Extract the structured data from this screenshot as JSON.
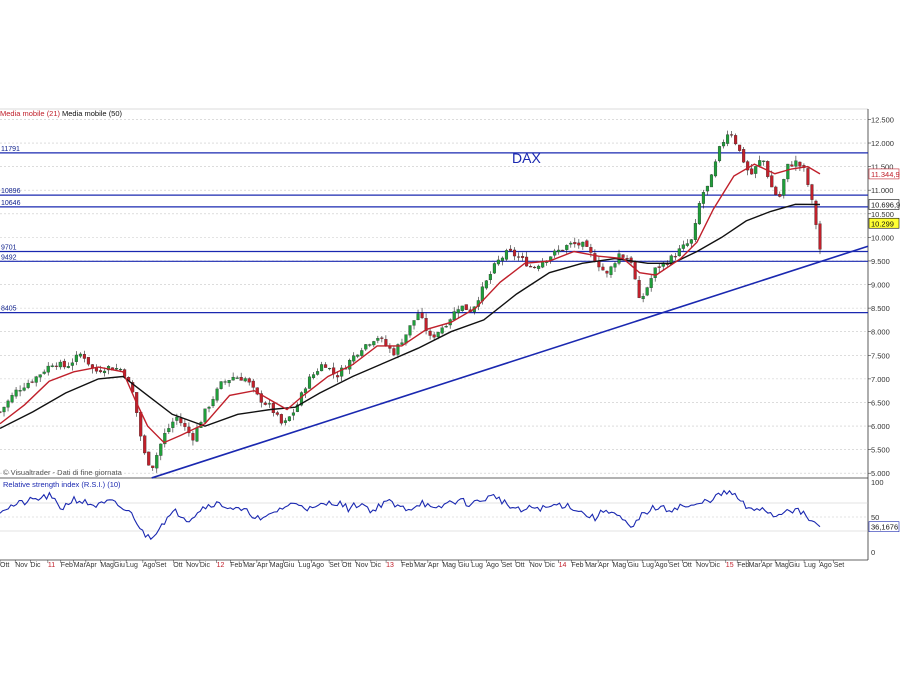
{
  "chart_data": [
    {
      "type": "candlestick",
      "title": "DAX",
      "legend": [
        {
          "label": "Media mobile (21)",
          "color": "#c0202b"
        },
        {
          "label": "Media mobile (50)",
          "color": "#111111"
        }
      ],
      "watermark": "© Visualtrader - Dati di fine giornata",
      "y_ticks": [
        "12.500",
        "12.000",
        "11.500",
        "11.000",
        "10.500",
        "10.000",
        "9.500",
        "9.000",
        "8.500",
        "8.000",
        "7.500",
        "7.000",
        "6.500",
        "6.000",
        "5.500",
        "5.000"
      ],
      "y_tick_values": [
        12500,
        12000,
        11500,
        11000,
        10500,
        10000,
        9500,
        9000,
        8500,
        8000,
        7500,
        7000,
        6500,
        6000,
        5500,
        5000
      ],
      "ylim": [
        4920,
        12700
      ],
      "levels": [
        {
          "label": "11791",
          "value": 11791
        },
        {
          "label": "10896",
          "value": 10896
        },
        {
          "label": "10646",
          "value": 10646
        },
        {
          "label": "9701",
          "value": 9701
        },
        {
          "label": "9492",
          "value": 9492
        },
        {
          "label": "8405",
          "value": 8405
        }
      ],
      "trendline": {
        "from": {
          "x": 0.185,
          "y": 4900
        },
        "to": {
          "x": 1.0,
          "y": 9600
        }
      },
      "value_badges": [
        {
          "label": "11.344,9",
          "value": 11345,
          "color": "#c0202b"
        },
        {
          "label": "10.696,9",
          "value": 10697,
          "color": "#111111"
        },
        {
          "label": "10.299",
          "value": 10299,
          "color": "#111111",
          "fill": "#ffff33"
        }
      ],
      "anchors": [
        [
          0.0,
          6300
        ],
        [
          0.02,
          6750
        ],
        [
          0.045,
          7050
        ],
        [
          0.065,
          7350
        ],
        [
          0.08,
          7250
        ],
        [
          0.1,
          7550
        ],
        [
          0.115,
          7150
        ],
        [
          0.13,
          7250
        ],
        [
          0.15,
          7200
        ],
        [
          0.163,
          6650
        ],
        [
          0.175,
          5450
        ],
        [
          0.185,
          5100
        ],
        [
          0.2,
          5800
        ],
        [
          0.215,
          6200
        ],
        [
          0.235,
          5750
        ],
        [
          0.25,
          6300
        ],
        [
          0.27,
          6900
        ],
        [
          0.285,
          7050
        ],
        [
          0.3,
          7000
        ],
        [
          0.315,
          6600
        ],
        [
          0.33,
          6400
        ],
        [
          0.345,
          6000
        ],
        [
          0.36,
          6350
        ],
        [
          0.375,
          6950
        ],
        [
          0.395,
          7350
        ],
        [
          0.41,
          7050
        ],
        [
          0.425,
          7350
        ],
        [
          0.44,
          7650
        ],
        [
          0.46,
          7900
        ],
        [
          0.48,
          7550
        ],
        [
          0.495,
          7950
        ],
        [
          0.51,
          8400
        ],
        [
          0.525,
          7850
        ],
        [
          0.545,
          8200
        ],
        [
          0.56,
          8550
        ],
        [
          0.575,
          8450
        ],
        [
          0.59,
          8950
        ],
        [
          0.605,
          9450
        ],
        [
          0.62,
          9700
        ],
        [
          0.635,
          9550
        ],
        [
          0.65,
          9350
        ],
        [
          0.665,
          9550
        ],
        [
          0.68,
          9700
        ],
        [
          0.695,
          9850
        ],
        [
          0.71,
          9850
        ],
        [
          0.725,
          9550
        ],
        [
          0.74,
          9200
        ],
        [
          0.755,
          9650
        ],
        [
          0.77,
          9500
        ],
        [
          0.78,
          8600
        ],
        [
          0.8,
          9350
        ],
        [
          0.815,
          9500
        ],
        [
          0.83,
          9750
        ],
        [
          0.845,
          9950
        ],
        [
          0.855,
          10900
        ],
        [
          0.865,
          11100
        ],
        [
          0.878,
          11900
        ],
        [
          0.89,
          12300
        ],
        [
          0.9,
          11900
        ],
        [
          0.915,
          11300
        ],
        [
          0.93,
          11700
        ],
        [
          0.94,
          11100
        ],
        [
          0.95,
          10800
        ],
        [
          0.96,
          11500
        ],
        [
          0.97,
          11600
        ],
        [
          0.98,
          11450
        ],
        [
          0.988,
          10950
        ],
        [
          0.995,
          10300
        ],
        [
          1.0,
          9750
        ]
      ],
      "ma21": [
        [
          0.0,
          6050
        ],
        [
          0.03,
          6450
        ],
        [
          0.06,
          6950
        ],
        [
          0.09,
          7150
        ],
        [
          0.12,
          7250
        ],
        [
          0.15,
          7150
        ],
        [
          0.165,
          6550
        ],
        [
          0.18,
          6000
        ],
        [
          0.2,
          5650
        ],
        [
          0.22,
          5800
        ],
        [
          0.25,
          6050
        ],
        [
          0.28,
          6650
        ],
        [
          0.31,
          6750
        ],
        [
          0.33,
          6550
        ],
        [
          0.35,
          6350
        ],
        [
          0.37,
          6650
        ],
        [
          0.4,
          7050
        ],
        [
          0.43,
          7300
        ],
        [
          0.46,
          7700
        ],
        [
          0.49,
          7700
        ],
        [
          0.52,
          8050
        ],
        [
          0.55,
          8200
        ],
        [
          0.58,
          8500
        ],
        [
          0.61,
          9050
        ],
        [
          0.64,
          9450
        ],
        [
          0.67,
          9500
        ],
        [
          0.7,
          9700
        ],
        [
          0.73,
          9600
        ],
        [
          0.76,
          9550
        ],
        [
          0.78,
          9250
        ],
        [
          0.8,
          9200
        ],
        [
          0.83,
          9550
        ],
        [
          0.85,
          9900
        ],
        [
          0.87,
          10600
        ],
        [
          0.895,
          11300
        ],
        [
          0.92,
          11550
        ],
        [
          0.945,
          11350
        ],
        [
          0.965,
          11450
        ],
        [
          0.985,
          11500
        ],
        [
          1.0,
          11345
        ]
      ],
      "ma50": [
        [
          0.0,
          5950
        ],
        [
          0.04,
          6300
        ],
        [
          0.08,
          6700
        ],
        [
          0.12,
          7000
        ],
        [
          0.15,
          7050
        ],
        [
          0.18,
          6650
        ],
        [
          0.21,
          6250
        ],
        [
          0.25,
          6000
        ],
        [
          0.29,
          6250
        ],
        [
          0.33,
          6350
        ],
        [
          0.36,
          6400
        ],
        [
          0.39,
          6700
        ],
        [
          0.43,
          7050
        ],
        [
          0.47,
          7350
        ],
        [
          0.51,
          7650
        ],
        [
          0.55,
          8000
        ],
        [
          0.59,
          8250
        ],
        [
          0.63,
          8800
        ],
        [
          0.67,
          9250
        ],
        [
          0.71,
          9450
        ],
        [
          0.75,
          9550
        ],
        [
          0.79,
          9450
        ],
        [
          0.82,
          9450
        ],
        [
          0.85,
          9700
        ],
        [
          0.88,
          10000
        ],
        [
          0.91,
          10350
        ],
        [
          0.94,
          10550
        ],
        [
          0.97,
          10700
        ],
        [
          1.0,
          10697
        ]
      ]
    },
    {
      "type": "line",
      "title": "Relative strength index (R.S.I.) (10)",
      "y_ticks": [
        "100",
        "50",
        "0"
      ],
      "y_tick_values": [
        100,
        50,
        0
      ],
      "ylim": [
        0,
        100
      ],
      "reference_lines": [
        70,
        30
      ],
      "badge": {
        "label": "36,1676",
        "value": 36.17
      },
      "x_labels": [
        {
          "t": "Ott",
          "x": 0.0
        },
        {
          "t": "Nov",
          "x": 0.02
        },
        {
          "t": "Dic",
          "x": 0.04
        },
        {
          "t": "11",
          "x": 0.063,
          "year": true
        },
        {
          "t": "Feb",
          "x": 0.08
        },
        {
          "t": "Mar",
          "x": 0.097
        },
        {
          "t": "Apr",
          "x": 0.113
        },
        {
          "t": "Mag",
          "x": 0.132
        },
        {
          "t": "Giu",
          "x": 0.15
        },
        {
          "t": "Lug",
          "x": 0.166
        },
        {
          "t": "Ago",
          "x": 0.188
        },
        {
          "t": "Set",
          "x": 0.205
        },
        {
          "t": "Ott",
          "x": 0.228
        },
        {
          "t": "Nov",
          "x": 0.245
        },
        {
          "t": "Dic",
          "x": 0.263
        },
        {
          "t": "12",
          "x": 0.285,
          "year": true
        },
        {
          "t": "Feb",
          "x": 0.303
        },
        {
          "t": "Mar",
          "x": 0.32
        },
        {
          "t": "Apr",
          "x": 0.338
        },
        {
          "t": "Mag",
          "x": 0.355
        },
        {
          "t": "Giu",
          "x": 0.373
        },
        {
          "t": "Lug",
          "x": 0.393
        },
        {
          "t": "Ago",
          "x": 0.41
        },
        {
          "t": "Set",
          "x": 0.433
        },
        {
          "t": "Ott",
          "x": 0.45
        },
        {
          "t": "Nov",
          "x": 0.468
        },
        {
          "t": "Dic",
          "x": 0.488
        },
        {
          "t": "13",
          "x": 0.508,
          "year": true
        },
        {
          "t": "Feb",
          "x": 0.528
        },
        {
          "t": "Mar",
          "x": 0.545
        },
        {
          "t": "Apr",
          "x": 0.563
        },
        {
          "t": "Mag",
          "x": 0.582
        },
        {
          "t": "Giu",
          "x": 0.603
        },
        {
          "t": "Lug",
          "x": 0.62
        },
        {
          "t": "Ago",
          "x": 0.64
        },
        {
          "t": "Set",
          "x": 0.66
        },
        {
          "t": "Ott",
          "x": 0.678
        },
        {
          "t": "Nov",
          "x": 0.697
        },
        {
          "t": "Dic",
          "x": 0.717
        },
        {
          "t": "14",
          "x": 0.735,
          "year": true
        },
        {
          "t": "Feb",
          "x": 0.752
        },
        {
          "t": "Mar",
          "x": 0.77
        },
        {
          "t": "Apr",
          "x": 0.787
        },
        {
          "t": "Mag",
          "x": 0.806
        },
        {
          "t": "Giu",
          "x": 0.826
        },
        {
          "t": "Lug",
          "x": 0.845
        },
        {
          "t": "Ago",
          "x": 0.862
        },
        {
          "t": "Set",
          "x": 0.88
        },
        {
          "t": "Ott",
          "x": 0.898
        },
        {
          "t": "Nov",
          "x": 0.916
        },
        {
          "t": "Dic",
          "x": 0.934
        },
        {
          "t": "15",
          "x": 0.955,
          "year": true
        },
        {
          "t": "Feb",
          "x": 0.97
        },
        {
          "t": "Mar",
          "x": 0.985
        },
        {
          "t": "Apr",
          "x": 1.002
        },
        {
          "t": "Mag",
          "x": 1.02
        },
        {
          "t": "Giu",
          "x": 1.038
        },
        {
          "t": "Lug",
          "x": 1.058
        },
        {
          "t": "Ago",
          "x": 1.078
        },
        {
          "t": "Set",
          "x": 1.097
        }
      ],
      "anchors": [
        [
          0.0,
          60
        ],
        [
          0.02,
          68
        ],
        [
          0.04,
          74
        ],
        [
          0.06,
          80
        ],
        [
          0.075,
          62
        ],
        [
          0.09,
          76
        ],
        [
          0.105,
          70
        ],
        [
          0.12,
          66
        ],
        [
          0.135,
          72
        ],
        [
          0.15,
          62
        ],
        [
          0.163,
          52
        ],
        [
          0.175,
          25
        ],
        [
          0.185,
          22
        ],
        [
          0.2,
          44
        ],
        [
          0.215,
          58
        ],
        [
          0.23,
          46
        ],
        [
          0.245,
          62
        ],
        [
          0.26,
          70
        ],
        [
          0.275,
          66
        ],
        [
          0.29,
          60
        ],
        [
          0.305,
          56
        ],
        [
          0.32,
          44
        ],
        [
          0.335,
          58
        ],
        [
          0.35,
          66
        ],
        [
          0.365,
          70
        ],
        [
          0.38,
          60
        ],
        [
          0.395,
          68
        ],
        [
          0.41,
          72
        ],
        [
          0.425,
          62
        ],
        [
          0.44,
          70
        ],
        [
          0.455,
          58
        ],
        [
          0.47,
          74
        ],
        [
          0.485,
          64
        ],
        [
          0.5,
          62
        ],
        [
          0.515,
          72
        ],
        [
          0.53,
          58
        ],
        [
          0.545,
          70
        ],
        [
          0.56,
          74
        ],
        [
          0.575,
          68
        ],
        [
          0.59,
          76
        ],
        [
          0.605,
          80
        ],
        [
          0.62,
          66
        ],
        [
          0.635,
          58
        ],
        [
          0.65,
          64
        ],
        [
          0.665,
          62
        ],
        [
          0.68,
          68
        ],
        [
          0.695,
          66
        ],
        [
          0.71,
          56
        ],
        [
          0.725,
          48
        ],
        [
          0.74,
          62
        ],
        [
          0.755,
          50
        ],
        [
          0.77,
          32
        ],
        [
          0.785,
          56
        ],
        [
          0.8,
          64
        ],
        [
          0.815,
          60
        ],
        [
          0.83,
          66
        ],
        [
          0.845,
          64
        ],
        [
          0.86,
          72
        ],
        [
          0.875,
          80
        ],
        [
          0.89,
          86
        ],
        [
          0.9,
          76
        ],
        [
          0.915,
          58
        ],
        [
          0.93,
          64
        ],
        [
          0.945,
          50
        ],
        [
          0.96,
          62
        ],
        [
          0.975,
          58
        ],
        [
          0.99,
          44
        ],
        [
          1.0,
          36
        ]
      ]
    }
  ]
}
